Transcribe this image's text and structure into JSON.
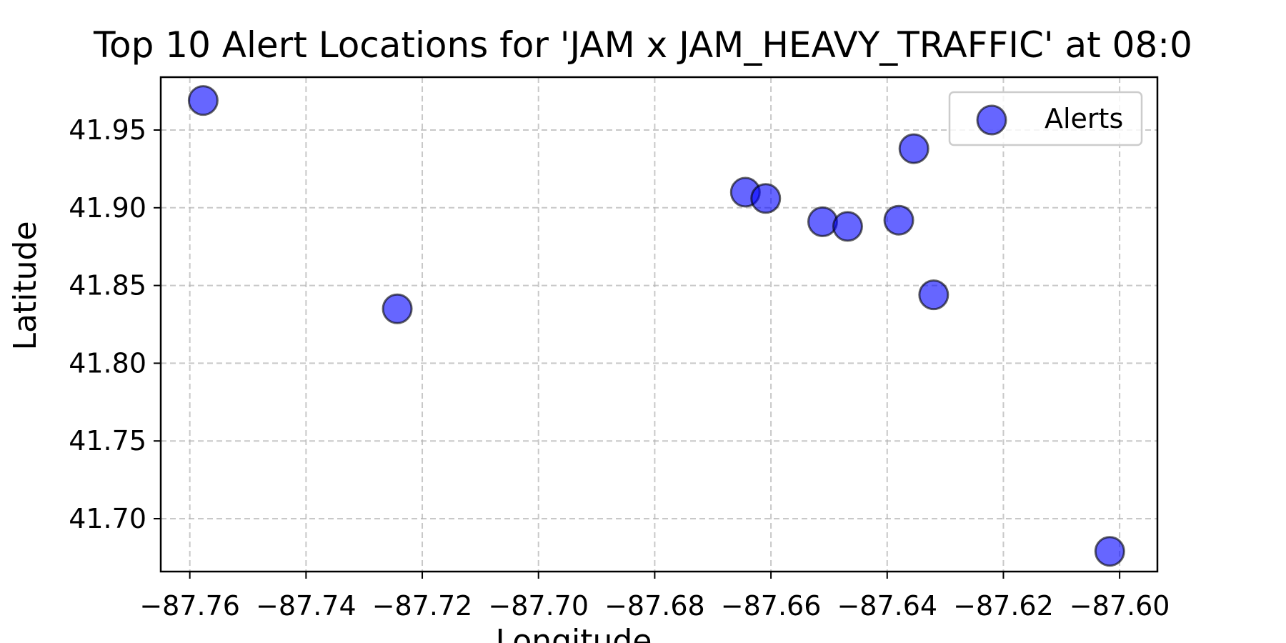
{
  "chart_data": {
    "type": "scatter",
    "title": "Top 10 Alert Locations for 'JAM x JAM_HEAVY_TRAFFIC' at 08:0",
    "xlabel": "Longitude",
    "ylabel": "Latitude",
    "xlim": [
      -87.765,
      -87.5935
    ],
    "ylim": [
      41.666,
      41.984
    ],
    "xticks": [
      -87.76,
      -87.74,
      -87.72,
      -87.7,
      -87.68,
      -87.66,
      -87.64,
      -87.62,
      -87.6
    ],
    "xtick_labels": [
      "−87.76",
      "−87.74",
      "−87.72",
      "−87.70",
      "−87.68",
      "−87.66",
      "−87.64",
      "−87.62",
      "−87.60"
    ],
    "yticks": [
      41.7,
      41.75,
      41.8,
      41.85,
      41.9,
      41.95
    ],
    "ytick_labels": [
      "41.70",
      "41.75",
      "41.80",
      "41.85",
      "41.90",
      "41.95"
    ],
    "grid": true,
    "legend_position": "top-right",
    "series": [
      {
        "name": "Alerts",
        "color": "#0000ff",
        "edge_color": "#000000",
        "points": [
          {
            "x": -87.7577,
            "y": 41.969
          },
          {
            "x": -87.7243,
            "y": 41.835
          },
          {
            "x": -87.6644,
            "y": 41.91
          },
          {
            "x": -87.6609,
            "y": 41.906
          },
          {
            "x": -87.6511,
            "y": 41.891
          },
          {
            "x": -87.6468,
            "y": 41.888
          },
          {
            "x": -87.638,
            "y": 41.892
          },
          {
            "x": -87.6354,
            "y": 41.938
          },
          {
            "x": -87.632,
            "y": 41.844
          },
          {
            "x": -87.6017,
            "y": 41.679
          }
        ]
      }
    ]
  }
}
